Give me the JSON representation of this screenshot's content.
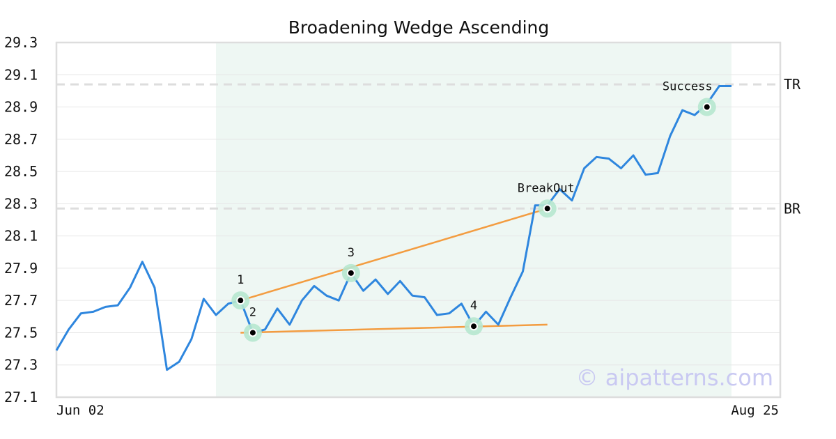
{
  "chart_data": {
    "type": "line",
    "title": "Broadening Wedge Ascending",
    "xlabel": "",
    "ylabel": "",
    "ylim": [
      27.1,
      29.3
    ],
    "yticks": [
      "27.1",
      "27.3",
      "27.5",
      "27.7",
      "27.9",
      "28.1",
      "28.3",
      "28.5",
      "28.7",
      "28.9",
      "29.1",
      "29.3"
    ],
    "xticks": [
      "Jun 02",
      "Aug 25"
    ],
    "grid": true,
    "colors": {
      "price": "#2e86de",
      "wedge": "#f39c40",
      "shade": "#eef7f3",
      "pivot_ring": "#b6e7cf",
      "level_line": "#dddddd"
    },
    "series": [
      {
        "values": [
          27.39,
          27.52,
          27.62,
          27.63,
          27.66,
          27.67,
          27.78,
          27.94,
          27.78,
          27.27,
          27.32,
          27.46,
          27.71,
          27.61,
          27.68,
          27.7,
          27.5,
          27.52,
          27.65,
          27.55,
          27.7,
          27.79,
          27.73,
          27.7,
          27.87,
          27.76,
          27.83,
          27.74,
          27.82,
          27.73,
          27.72,
          27.61,
          27.62,
          27.68,
          27.54,
          27.63,
          27.55,
          27.72,
          27.88,
          28.29,
          28.29,
          28.39,
          28.32,
          28.52,
          28.59,
          28.58,
          28.52,
          28.6,
          28.48,
          28.49,
          28.72,
          28.88,
          28.85,
          28.92,
          29.03,
          29.03
        ]
      }
    ],
    "levels": [
      {
        "label": "TR",
        "value": 29.04
      },
      {
        "label": "BR",
        "value": 28.27
      }
    ],
    "pattern_points": [
      {
        "label": "1",
        "index": 15,
        "value": 27.7
      },
      {
        "label": "2",
        "index": 16,
        "value": 27.5
      },
      {
        "label": "3",
        "index": 24,
        "value": 27.87
      },
      {
        "label": "4",
        "index": 34,
        "value": 27.54
      },
      {
        "label": "BreakOut",
        "index": 40,
        "value": 28.27
      },
      {
        "label": "Success",
        "index": 53,
        "value": 28.9
      }
    ],
    "trendlines": [
      {
        "from": {
          "index": 15,
          "value": 27.7
        },
        "to": {
          "index": 40,
          "value": 28.27
        }
      },
      {
        "from": {
          "index": 15,
          "value": 27.5
        },
        "to": {
          "index": 40,
          "value": 27.55
        }
      }
    ],
    "pattern_range": {
      "start_index": 13,
      "end_index": 55
    },
    "watermark": "© aipatterns.com"
  }
}
